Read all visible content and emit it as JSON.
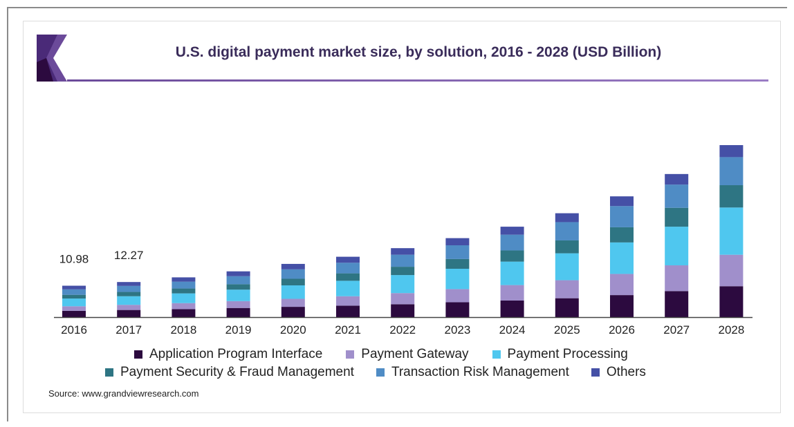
{
  "page": {
    "title": "U.S. digital payment market size, by solution, 2016 - 2028 (USD Billion)",
    "source": "Source: www.grandviewresearch.com",
    "logo": "grand-view-research-logo"
  },
  "colors": {
    "api": "#2c0a3f",
    "gateway": "#a08fcb",
    "processing": "#4fc7ef",
    "security": "#2e7583",
    "risk": "#4f8cc5",
    "others": "#4550a6",
    "title": "#3a2c5a",
    "accent": "#6b4a9a"
  },
  "chart_data": {
    "type": "bar",
    "stacked": true,
    "title": "U.S. digital payment market size, by solution, 2016 - 2028 (USD Billion)",
    "xlabel": "",
    "ylabel": "",
    "ylim": [
      0,
      70
    ],
    "grid": false,
    "legend": "bottom",
    "categories": [
      "2016",
      "2017",
      "2018",
      "2019",
      "2020",
      "2021",
      "2022",
      "2023",
      "2024",
      "2025",
      "2026",
      "2027",
      "2028"
    ],
    "annotations": [
      {
        "category": "2016",
        "label": "10.98",
        "value": 10.98
      },
      {
        "category": "2017",
        "label": "12.27",
        "value": 12.27
      }
    ],
    "series": [
      {
        "name": "Application Program Interface",
        "color": "#2c0a3f",
        "values": [
          2.2,
          2.5,
          2.8,
          3.2,
          3.6,
          4.0,
          4.5,
          5.2,
          5.8,
          6.6,
          7.7,
          9.1,
          10.8
        ]
      },
      {
        "name": "Payment Gateway",
        "color": "#a08fcb",
        "values": [
          1.6,
          1.8,
          2.1,
          2.4,
          2.8,
          3.3,
          3.9,
          4.6,
          5.4,
          6.3,
          7.4,
          9.0,
          11.0
        ]
      },
      {
        "name": "Payment Processing",
        "color": "#4fc7ef",
        "values": [
          2.7,
          3.0,
          3.4,
          4.0,
          4.7,
          5.4,
          6.3,
          7.1,
          8.2,
          9.4,
          11.0,
          13.5,
          16.5
        ]
      },
      {
        "name": "Payment Security & Fraud Management",
        "color": "#2e7583",
        "values": [
          1.3,
          1.5,
          1.7,
          1.9,
          2.3,
          2.6,
          2.9,
          3.4,
          3.9,
          4.5,
          5.3,
          6.6,
          7.8
        ]
      },
      {
        "name": "Transaction Risk Management",
        "color": "#4f8cc5",
        "values": [
          1.9,
          2.1,
          2.4,
          2.8,
          3.3,
          3.7,
          4.2,
          4.8,
          5.5,
          6.4,
          7.4,
          8.1,
          9.8
        ]
      },
      {
        "name": "Others",
        "color": "#4550a6",
        "values": [
          1.28,
          1.37,
          1.5,
          1.7,
          1.9,
          2.1,
          2.3,
          2.5,
          2.8,
          3.1,
          3.4,
          3.7,
          4.2
        ]
      }
    ]
  }
}
